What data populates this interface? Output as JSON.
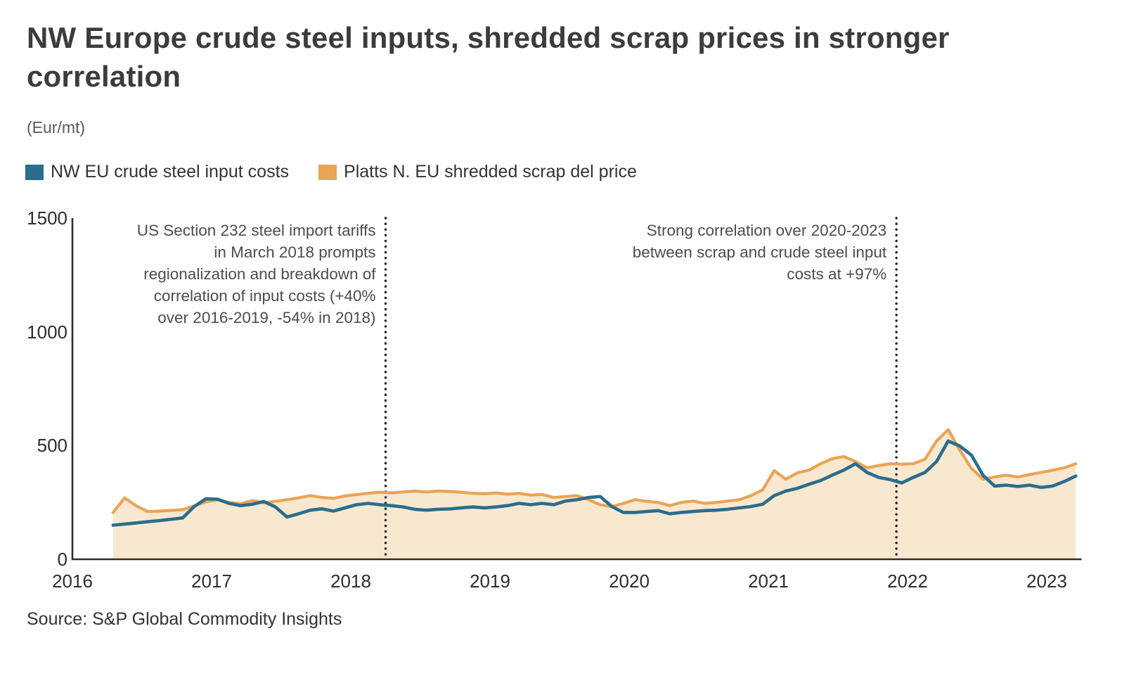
{
  "header": {
    "title": "NW Europe crude steel inputs, shredded scrap prices in stronger correlation",
    "subtitle": "(Eur/mt)"
  },
  "legend": [
    {
      "label": "NW EU crude steel input costs",
      "color": "#2a6d8c"
    },
    {
      "label": "Platts N. EU shredded scrap del price",
      "color": "#e9a455"
    }
  ],
  "annotations": [
    {
      "text": "US Section 232 steel import tariffs in March 2018 prompts regionalization and breakdown of correlation of input costs (+40% over 2016-2019, -54% in 2018)",
      "x_year": 2018.25
    },
    {
      "text": "Strong correlation over 2020-2023 between scrap and crude steel input costs at +97%",
      "x_year": 2021.92
    }
  ],
  "source": "Source: S&P Global Commodity Insights",
  "chart_data": {
    "type": "line",
    "title": "NW Europe crude steel inputs, shredded scrap prices in stronger correlation",
    "unit": "Eur/mt",
    "x_start": 2016.292,
    "x_step": 0.083333,
    "x_ticks": [
      2016,
      2017,
      2018,
      2019,
      2020,
      2021,
      2022,
      2023
    ],
    "y_ticks": [
      0,
      500,
      1000,
      1500
    ],
    "ylim": [
      0,
      1500
    ],
    "xlim": [
      2016,
      2023.25
    ],
    "grid": false,
    "legend_position": "top-left",
    "vlines": [
      2018.25,
      2021.92
    ],
    "series": [
      {
        "name": "NW EU crude steel input costs",
        "color": "#2a6d8c",
        "values": [
          150,
          155,
          160,
          165,
          170,
          176,
          182,
          232,
          266,
          264,
          246,
          236,
          242,
          254,
          230,
          186,
          200,
          216,
          222,
          212,
          226,
          240,
          246,
          240,
          236,
          230,
          220,
          216,
          220,
          221,
          226,
          230,
          226,
          230,
          236,
          246,
          240,
          246,
          240,
          256,
          262,
          272,
          276,
          232,
          206,
          206,
          210,
          214,
          200,
          206,
          210,
          214,
          216,
          220,
          226,
          232,
          242,
          280,
          300,
          312,
          330,
          346,
          370,
          392,
          420,
          382,
          360,
          350,
          336,
          360,
          382,
          430,
          520,
          498,
          458,
          370,
          322,
          326,
          320,
          326,
          316,
          322,
          342,
          366
        ]
      },
      {
        "name": "Platts N. EU shredded scrap del price",
        "color": "#e9a455",
        "fill": "#f8e8d0",
        "values": [
          205,
          270,
          235,
          210,
          212,
          215,
          218,
          235,
          252,
          262,
          250,
          245,
          258,
          248,
          255,
          262,
          270,
          280,
          272,
          268,
          278,
          285,
          290,
          295,
          292,
          296,
          300,
          296,
          300,
          298,
          295,
          290,
          288,
          292,
          286,
          290,
          282,
          285,
          272,
          276,
          280,
          262,
          240,
          232,
          246,
          262,
          255,
          250,
          236,
          250,
          256,
          246,
          250,
          256,
          262,
          280,
          305,
          390,
          352,
          380,
          392,
          420,
          442,
          452,
          430,
          402,
          412,
          420,
          418,
          420,
          440,
          520,
          570,
          480,
          400,
          352,
          362,
          370,
          362,
          372,
          382,
          392,
          402,
          420
        ]
      }
    ]
  }
}
